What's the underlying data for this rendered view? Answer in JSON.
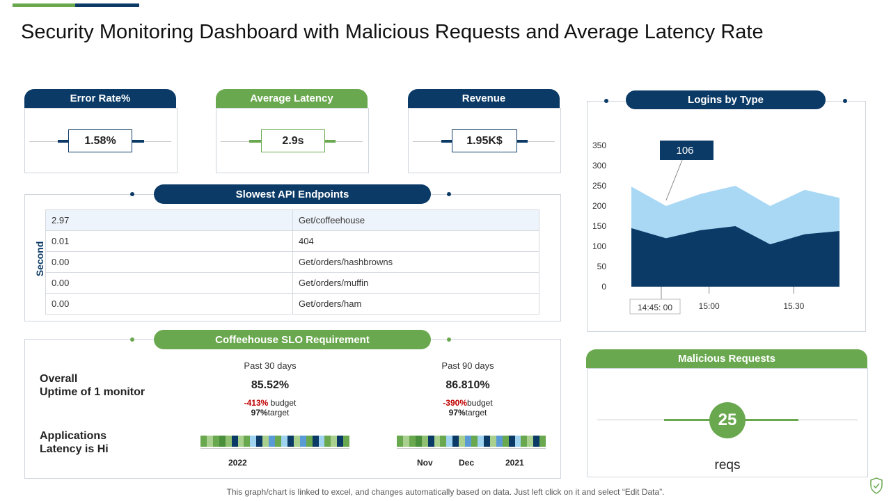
{
  "title": "Security Monitoring Dashboard with Malicious Requests and Average Latency Rate",
  "kpis": {
    "error_rate": {
      "label": "Error Rate%",
      "value": "1.58%"
    },
    "avg_latency": {
      "label": "Average Latency",
      "value": "2.9s"
    },
    "revenue": {
      "label": "Revenue",
      "value": "1.95K$"
    }
  },
  "api": {
    "title": "Slowest API Endpoints",
    "axis_label": "Second",
    "rows": [
      {
        "seconds": "2.97",
        "endpoint": "Get/coffeehouse"
      },
      {
        "seconds": "0.01",
        "endpoint": "404"
      },
      {
        "seconds": "0.00",
        "endpoint": "Get/orders/hashbrowns"
      },
      {
        "seconds": "0.00",
        "endpoint": "Get/orders/muffin"
      },
      {
        "seconds": "0.00",
        "endpoint": "Get/orders/ham"
      }
    ]
  },
  "slo": {
    "title": "Coffeehouse SLO Requirement",
    "row1_label_line1": "Overall",
    "row1_label_line2": "Uptime of 1 monitor",
    "row2_label_line1": "Applications",
    "row2_label_line2": "Latency is Hi",
    "p30": {
      "period": "Past 30 days",
      "uptime": "85.52%",
      "budget_value": "-413%",
      "budget_label": " budget",
      "target_value": "97%",
      "target_label": "target"
    },
    "p90": {
      "period": "Past 90 days",
      "uptime": "86.810%",
      "budget_value": "-390%",
      "budget_label": "budget",
      "target_value": "97%",
      "target_label": "target"
    },
    "strip1_labels": [
      "2022"
    ],
    "strip2_labels": [
      "Nov",
      "Dec",
      "2021"
    ],
    "strip_colors": [
      "#6aa84f",
      "#a9d08e",
      "#6aa84f",
      "#4a8f3c",
      "#8fbf70",
      "#0b3a66",
      "#a9d08e",
      "#6aa84f",
      "#9fd3f0",
      "#0b3a66",
      "#a9d08e",
      "#5b9bd5",
      "#6aa84f",
      "#9fd3f0",
      "#0b3a66",
      "#a9d08e",
      "#5b9bd5",
      "#6aa84f",
      "#0b3a66",
      "#9fd3f0",
      "#6aa84f",
      "#a9d08e",
      "#0b3a66",
      "#6aa84f"
    ]
  },
  "logins": {
    "title": "Logins by Type"
  },
  "malicious": {
    "title": "Malicious Requests",
    "value": "25",
    "unit": "reqs"
  },
  "footer": "This graph/chart is linked to excel, and changes automatically based on data. Just left click on it and select “Edit Data”.",
  "chart_data": {
    "type": "area",
    "title": "Logins by Type",
    "x": [
      "",
      "",
      "",
      "",
      "",
      "",
      ""
    ],
    "tick_labels": [
      "14:45: 00",
      "15:00",
      "15.30"
    ],
    "ylim": [
      0,
      350
    ],
    "yticks": [
      0,
      50,
      100,
      150,
      200,
      250,
      300,
      350
    ],
    "series": [
      {
        "values": [
          145,
          120,
          140,
          150,
          105,
          130,
          138
        ],
        "color": "#0b3a66"
      },
      {
        "values": [
          248,
          200,
          230,
          250,
          200,
          240,
          220
        ],
        "color": "#a9d8f5"
      }
    ],
    "annotation": "106",
    "grid": false,
    "colors": {
      "navy": "#0b3a66",
      "green": "#6aa84f",
      "light": "#a9d8f5"
    }
  }
}
